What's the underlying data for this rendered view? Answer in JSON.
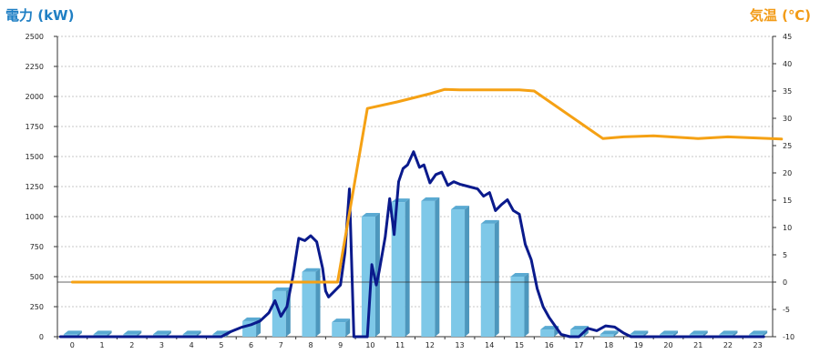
{
  "chart_data": {
    "type": "bar+line",
    "left_axis_label": "電力 (kW)",
    "right_axis_label": "気温 (℃)",
    "categories": [
      "0",
      "1",
      "2",
      "3",
      "4",
      "5",
      "6",
      "7",
      "8",
      "9",
      "10",
      "11",
      "12",
      "13",
      "14",
      "15",
      "16",
      "17",
      "18",
      "19",
      "20",
      "21",
      "22",
      "23"
    ],
    "y_left": {
      "range": [
        0,
        2500
      ],
      "ticks": [
        "0",
        "250",
        "500",
        "750",
        "1000",
        "1250",
        "1500",
        "1750",
        "2000",
        "2250",
        "2500"
      ]
    },
    "y_right": {
      "range": [
        -10,
        45
      ],
      "ticks": [
        "-10",
        "-5",
        "0",
        "5",
        "10",
        "15",
        "20",
        "25",
        "30",
        "35",
        "40",
        "45"
      ]
    },
    "grid": "horizontal dotted",
    "series": [
      {
        "axis": "left",
        "kind": "bar",
        "color": "#7ec8e8",
        "values": [
          20,
          20,
          20,
          20,
          20,
          20,
          130,
          380,
          540,
          120,
          1000,
          1120,
          1130,
          1060,
          940,
          500,
          60,
          60,
          20,
          20,
          20,
          20,
          20,
          20
        ]
      },
      {
        "axis": "left",
        "kind": "line",
        "color": "#0a1a8c",
        "points": [
          [
            -0.4,
            0
          ],
          [
            5.0,
            0
          ],
          [
            5.3,
            40
          ],
          [
            5.7,
            80
          ],
          [
            6.0,
            100
          ],
          [
            6.3,
            130
          ],
          [
            6.6,
            200
          ],
          [
            6.8,
            300
          ],
          [
            7.0,
            170
          ],
          [
            7.2,
            250
          ],
          [
            7.4,
            500
          ],
          [
            7.6,
            820
          ],
          [
            7.8,
            800
          ],
          [
            8.0,
            840
          ],
          [
            8.2,
            790
          ],
          [
            8.4,
            570
          ],
          [
            8.5,
            380
          ],
          [
            8.6,
            330
          ],
          [
            8.8,
            380
          ],
          [
            9.0,
            430
          ],
          [
            9.15,
            700
          ],
          [
            9.3,
            1230
          ],
          [
            9.45,
            0
          ],
          [
            9.9,
            0
          ],
          [
            10.05,
            600
          ],
          [
            10.2,
            430
          ],
          [
            10.3,
            550
          ],
          [
            10.5,
            830
          ],
          [
            10.65,
            1150
          ],
          [
            10.8,
            850
          ],
          [
            10.95,
            1290
          ],
          [
            11.1,
            1400
          ],
          [
            11.25,
            1430
          ],
          [
            11.45,
            1540
          ],
          [
            11.65,
            1410
          ],
          [
            11.8,
            1430
          ],
          [
            12.0,
            1280
          ],
          [
            12.2,
            1350
          ],
          [
            12.4,
            1370
          ],
          [
            12.6,
            1260
          ],
          [
            12.8,
            1290
          ],
          [
            13.0,
            1270
          ],
          [
            13.3,
            1250
          ],
          [
            13.6,
            1230
          ],
          [
            13.8,
            1170
          ],
          [
            14.0,
            1200
          ],
          [
            14.2,
            1050
          ],
          [
            14.4,
            1100
          ],
          [
            14.6,
            1140
          ],
          [
            14.8,
            1050
          ],
          [
            15.0,
            1020
          ],
          [
            15.2,
            770
          ],
          [
            15.4,
            640
          ],
          [
            15.6,
            400
          ],
          [
            15.8,
            250
          ],
          [
            16.0,
            160
          ],
          [
            16.2,
            90
          ],
          [
            16.4,
            20
          ],
          [
            16.7,
            0
          ],
          [
            17.0,
            0
          ],
          [
            17.3,
            70
          ],
          [
            17.6,
            50
          ],
          [
            17.9,
            90
          ],
          [
            18.2,
            80
          ],
          [
            18.5,
            30
          ],
          [
            18.75,
            0
          ],
          [
            23.2,
            0
          ]
        ]
      },
      {
        "axis": "right",
        "kind": "line",
        "color": "#f5a114",
        "points": [
          [
            0,
            0
          ],
          [
            8.9,
            0
          ],
          [
            9.9,
            31.8
          ],
          [
            10.9,
            33
          ],
          [
            12.0,
            34.5
          ],
          [
            12.5,
            35.3
          ],
          [
            13.0,
            35.2
          ],
          [
            15.0,
            35.2
          ],
          [
            15.5,
            35.0
          ],
          [
            17.8,
            26.3
          ],
          [
            18.5,
            26.6
          ],
          [
            19.5,
            26.8
          ],
          [
            21.0,
            26.3
          ],
          [
            22.0,
            26.6
          ],
          [
            23.8,
            26.2
          ]
        ]
      }
    ]
  }
}
